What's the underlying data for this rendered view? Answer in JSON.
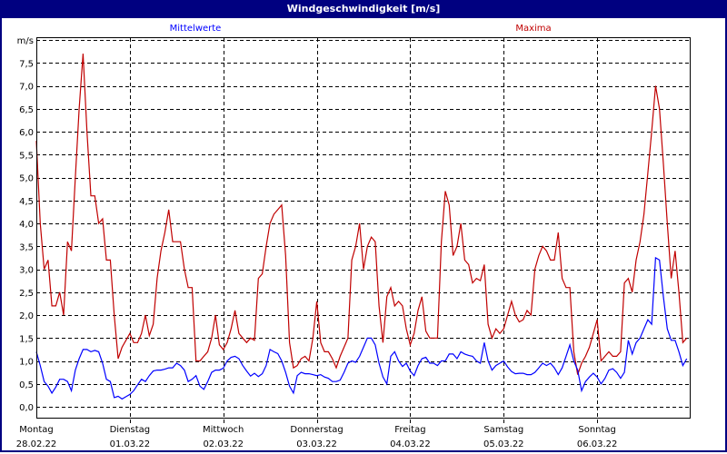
{
  "title": "Windgeschwindigkeit [m/s]",
  "colors": {
    "titlebar": "#000080",
    "mittelwerte": "#0000ff",
    "maxima": "#c00000",
    "grid": "#000000"
  },
  "chart_data": {
    "type": "line",
    "title": "Windgeschwindigkeit [m/s]",
    "ylabel": "m/s",
    "ylim": [
      -0.25,
      8.0
    ],
    "yticks": [
      "0,0",
      "0,5",
      "1,0",
      "1,5",
      "2,0",
      "2,5",
      "3,0",
      "3,5",
      "4,0",
      "4,5",
      "5,0",
      "5,5",
      "6,0",
      "6,5",
      "7,0",
      "7,5"
    ],
    "grid": true,
    "legend_placement": "top",
    "sampling": "hourly",
    "days": [
      {
        "name": "Montag",
        "date": "28.02.22"
      },
      {
        "name": "Dienstag",
        "date": "01.03.22"
      },
      {
        "name": "Mittwoch",
        "date": "02.03.22"
      },
      {
        "name": "Donnerstag",
        "date": "03.03.22"
      },
      {
        "name": "Freitag",
        "date": "04.03.22"
      },
      {
        "name": "Samstag",
        "date": "05.03.22"
      },
      {
        "name": "Sonntag",
        "date": "06.03.22"
      }
    ],
    "series": [
      {
        "name": "Mittelwerte",
        "color": "#0000ff",
        "values": [
          [
            1.2,
            0.9,
            0.55,
            0.45,
            0.3,
            0.43,
            0.6,
            0.6,
            0.55,
            0.35,
            0.8,
            1.05,
            1.25,
            1.25,
            1.2,
            1.23,
            1.2,
            0.95,
            0.6,
            0.55,
            0.2,
            0.23,
            0.17,
            0.22
          ],
          [
            0.27,
            0.35,
            0.48,
            0.6,
            0.55,
            0.68,
            0.78,
            0.8,
            0.8,
            0.82,
            0.85,
            0.85,
            0.95,
            0.9,
            0.8,
            0.55,
            0.6,
            0.68,
            0.45,
            0.38,
            0.55,
            0.75,
            0.8,
            0.8
          ],
          [
            0.84,
            1.0,
            1.08,
            1.1,
            1.05,
            0.9,
            0.78,
            0.67,
            0.73,
            0.66,
            0.72,
            0.9,
            1.25,
            1.2,
            1.16,
            1.0,
            0.75,
            0.45,
            0.3,
            0.68,
            0.75,
            0.72,
            0.72,
            0.7
          ],
          [
            0.68,
            0.7,
            0.65,
            0.62,
            0.55,
            0.55,
            0.58,
            0.75,
            0.95,
            1.0,
            0.97,
            1.1,
            1.3,
            1.5,
            1.5,
            1.35,
            0.95,
            0.65,
            0.5,
            1.1,
            1.2,
            1.0,
            0.88,
            0.95
          ],
          [
            0.78,
            0.68,
            0.9,
            1.05,
            1.08,
            0.95,
            0.95,
            0.9,
            1.0,
            1.0,
            1.15,
            1.15,
            1.05,
            1.2,
            1.15,
            1.12,
            1.1,
            1.0,
            0.95,
            1.4,
            1.0,
            0.8,
            0.9,
            0.95
          ],
          [
            1.0,
            0.87,
            0.77,
            0.72,
            0.73,
            0.73,
            0.7,
            0.7,
            0.75,
            0.85,
            0.95,
            0.9,
            0.95,
            0.85,
            0.7,
            0.85,
            1.1,
            1.35,
            1.0,
            0.8,
            0.35,
            0.55,
            0.65,
            0.73
          ],
          [
            0.65,
            0.5,
            0.62,
            0.8,
            0.83,
            0.75,
            0.62,
            0.75,
            1.45,
            1.15,
            1.4,
            1.5,
            1.7,
            1.9,
            1.8,
            3.25,
            3.2,
            2.4,
            1.7,
            1.45,
            1.45,
            1.2,
            0.9,
            1.05
          ]
        ]
      },
      {
        "name": "Maxima",
        "color": "#c00000",
        "values": [
          [
            5.8,
            4.0,
            3.0,
            3.2,
            2.2,
            2.2,
            2.5,
            2.0,
            3.6,
            3.4,
            5.0,
            6.5,
            7.7,
            6.0,
            4.6,
            4.6,
            4.0,
            4.1,
            3.2,
            3.2,
            2.0,
            1.05,
            1.3,
            1.45
          ],
          [
            1.6,
            1.4,
            1.4,
            1.6,
            2.0,
            1.55,
            1.8,
            2.8,
            3.4,
            3.8,
            4.3,
            3.6,
            3.6,
            3.6,
            3.0,
            2.6,
            2.6,
            1.0,
            1.0,
            1.1,
            1.2,
            1.5,
            2.0,
            1.35
          ],
          [
            1.25,
            1.4,
            1.7,
            2.1,
            1.6,
            1.5,
            1.4,
            1.5,
            1.45,
            2.8,
            2.9,
            3.5,
            4.0,
            4.2,
            4.3,
            4.4,
            3.3,
            1.4,
            0.85,
            0.9,
            1.05,
            1.1,
            1.0,
            1.5
          ],
          [
            2.3,
            1.4,
            1.2,
            1.2,
            1.05,
            0.85,
            1.1,
            1.3,
            1.5,
            3.2,
            3.5,
            4.0,
            3.0,
            3.5,
            3.7,
            3.6,
            2.2,
            1.4,
            2.4,
            2.6,
            2.2,
            2.3,
            2.2,
            1.7
          ],
          [
            1.35,
            1.6,
            2.1,
            2.4,
            1.65,
            1.5,
            1.5,
            1.5,
            3.6,
            4.7,
            4.4,
            3.3,
            3.5,
            4.0,
            3.2,
            3.1,
            2.7,
            2.8,
            2.75,
            3.1,
            1.8,
            1.5,
            1.7,
            1.6
          ],
          [
            1.7,
            2.0,
            2.3,
            2.0,
            1.85,
            1.9,
            2.1,
            2.0,
            3.0,
            3.3,
            3.5,
            3.4,
            3.2,
            3.2,
            3.8,
            2.8,
            2.6,
            2.6,
            1.2,
            0.7,
            0.95,
            1.1,
            1.3,
            1.6
          ],
          [
            1.9,
            1.0,
            1.1,
            1.2,
            1.1,
            1.1,
            1.2,
            2.7,
            2.8,
            2.5,
            3.2,
            3.6,
            4.2,
            5.1,
            6.0,
            7.0,
            6.5,
            5.3,
            4.0,
            2.8,
            3.4,
            2.5,
            1.4,
            1.5
          ]
        ]
      }
    ]
  }
}
